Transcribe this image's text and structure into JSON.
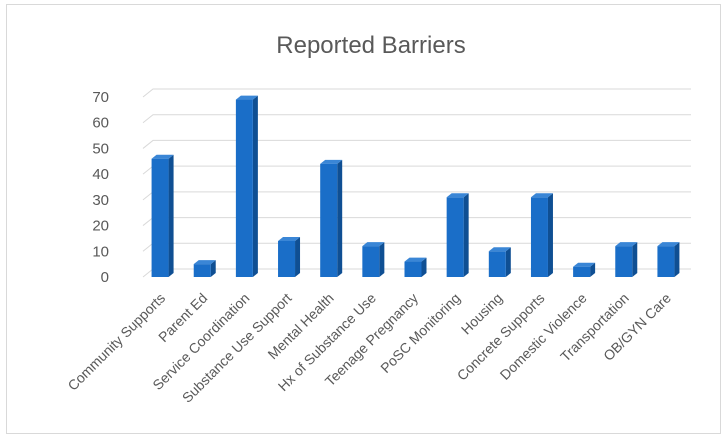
{
  "chart_data": {
    "type": "bar",
    "title": "Reported Barriers",
    "xlabel": "",
    "ylabel": "",
    "categories": [
      "Community Supports",
      "Parent Ed",
      "Service Coordination",
      "Substance Use Support",
      "Mental Health",
      "Hx of Substance Use",
      "Teenage Pregnancy",
      "PoSC Monitoring",
      "Housing",
      "Concrete Supports",
      "Domestic Violence",
      "Transportation",
      "OB/GYN Care"
    ],
    "values": [
      46,
      5,
      69,
      14,
      44,
      12,
      6,
      31,
      10,
      31,
      4,
      12,
      12
    ],
    "ylim": [
      0,
      70
    ],
    "yticks": [
      0,
      10,
      20,
      30,
      40,
      50,
      60,
      70
    ],
    "grid": true,
    "legend": "none",
    "style": "3d-column",
    "colors": {
      "bar_front": "#1a6ec8",
      "bar_side": "#0f4f93",
      "bar_top": "#3a86d6",
      "grid": "#d9d9d9",
      "text": "#595959"
    }
  }
}
